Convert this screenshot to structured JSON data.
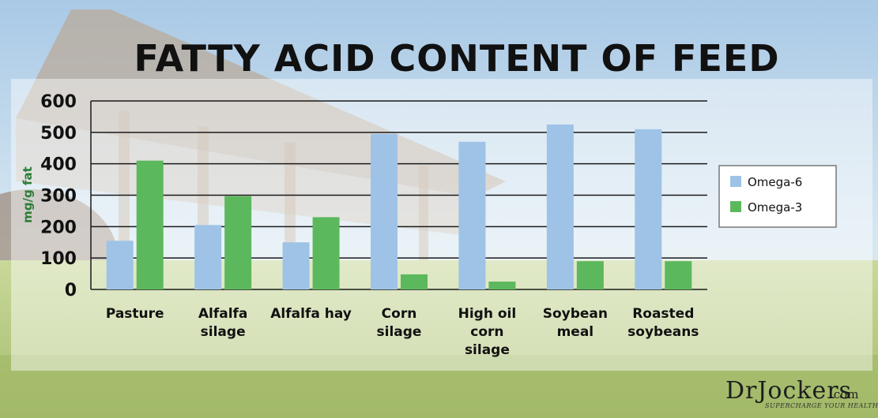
{
  "chart_data": {
    "type": "bar",
    "title": "FATTY ACID CONTENT OF FEED",
    "ylabel": "mg/g fat",
    "xlabel": "",
    "ylim": [
      0,
      600
    ],
    "yticks": [
      0,
      100,
      200,
      300,
      400,
      500,
      600
    ],
    "grid": true,
    "legend_position": "right",
    "categories": [
      [
        "Pasture"
      ],
      [
        "Alfalfa",
        "silage"
      ],
      [
        "Alfalfa hay"
      ],
      [
        "Corn",
        "silage"
      ],
      [
        "High oil",
        "corn",
        "silage"
      ],
      [
        "Soybean",
        "meal"
      ],
      [
        "Roasted",
        "soybeans"
      ]
    ],
    "series": [
      {
        "name": "Omega-6",
        "color": "#9ec3e6",
        "values": [
          155,
          205,
          150,
          495,
          470,
          525,
          510
        ]
      },
      {
        "name": "Omega-3",
        "color": "#5cb85c",
        "values": [
          410,
          297,
          230,
          48,
          25,
          90,
          90
        ]
      }
    ]
  },
  "brand": {
    "name": "DrJockers",
    "suffix": ".com",
    "tagline": "SUPERCHARGE YOUR HEALTH"
  }
}
